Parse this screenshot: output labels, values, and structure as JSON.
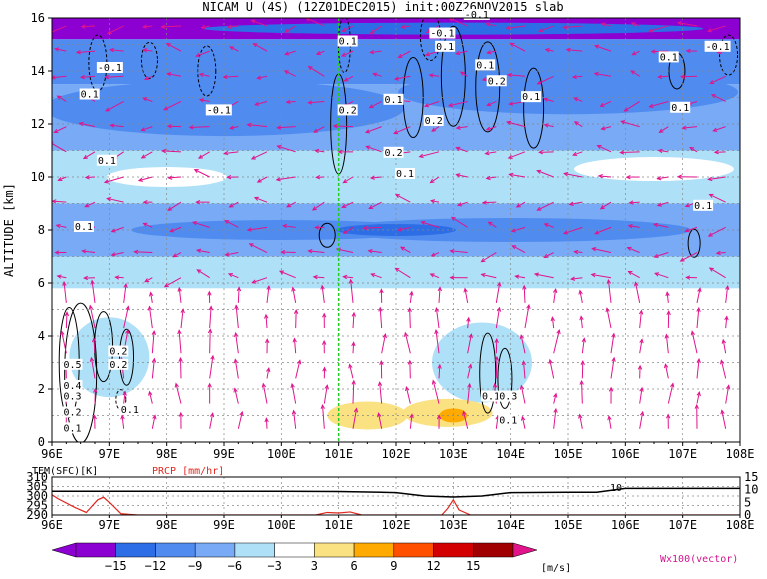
{
  "chart_data": [
    {
      "type": "heatmap",
      "title": "NICAM U (4S) (12Z01DEC2015) init:00Z26NOV2015 slab",
      "ylabel": "ALTITUDE [km]",
      "xlabel": "",
      "x_ticks": [
        "96E",
        "97E",
        "98E",
        "99E",
        "100E",
        "101E",
        "102E",
        "103E",
        "104E",
        "105E",
        "106E",
        "107E",
        "108E"
      ],
      "y_ticks": [
        "0",
        "2",
        "4",
        "6",
        "8",
        "10",
        "12",
        "14",
        "16"
      ],
      "xlim": [
        96,
        108
      ],
      "ylim": [
        0,
        16
      ],
      "grid": true,
      "reference_line_x": 101,
      "colorbar": {
        "levels": [
          "-15",
          "-12",
          "-9",
          "-6",
          "-3",
          "3",
          "6",
          "9",
          "12",
          "15"
        ],
        "unit": "[m/s]",
        "colors": [
          "#8c00d2",
          "#2d6ee6",
          "#508cf0",
          "#78aaf5",
          "#aee0f8",
          "#ffffff",
          "#fae182",
          "#ffaa00",
          "#ff5000",
          "#d20000",
          "#a00000",
          "#e1148c"
        ]
      },
      "contour_labels": [
        {
          "text": "0.1",
          "x": 96.5,
          "y": 13.0
        },
        {
          "text": "-0.1",
          "x": 96.8,
          "y": 14.0
        },
        {
          "text": "0.1",
          "x": 96.8,
          "y": 10.5
        },
        {
          "text": "-0.1",
          "x": 98.7,
          "y": 12.4
        },
        {
          "text": "0.1",
          "x": 96.4,
          "y": 8.0
        },
        {
          "text": "0.1",
          "x": 101.0,
          "y": 15.0
        },
        {
          "text": "0.2",
          "x": 101.0,
          "y": 12.4
        },
        {
          "text": "0.1",
          "x": 101.8,
          "y": 12.8
        },
        {
          "text": "0.2",
          "x": 101.8,
          "y": 10.8
        },
        {
          "text": "0.1",
          "x": 102.0,
          "y": 10.0
        },
        {
          "text": "0.2",
          "x": 102.5,
          "y": 12.0
        },
        {
          "text": "-0.1",
          "x": 102.6,
          "y": 15.3
        },
        {
          "text": "0.1",
          "x": 102.7,
          "y": 14.8
        },
        {
          "text": "-0.1",
          "x": 103.2,
          "y": 16.0
        },
        {
          "text": "0.1",
          "x": 103.4,
          "y": 14.1
        },
        {
          "text": "0.2",
          "x": 103.6,
          "y": 13.5
        },
        {
          "text": "0.1",
          "x": 104.2,
          "y": 12.9
        },
        {
          "text": "0.1",
          "x": 106.6,
          "y": 14.4
        },
        {
          "text": "-0.1",
          "x": 107.4,
          "y": 14.8
        },
        {
          "text": "0.1",
          "x": 106.8,
          "y": 12.5
        },
        {
          "text": "0.1",
          "x": 107.2,
          "y": 8.8
        },
        {
          "text": "0.2",
          "x": 97.0,
          "y": 3.3
        },
        {
          "text": "0.2",
          "x": 97.0,
          "y": 2.8
        },
        {
          "text": "0.5",
          "x": 96.2,
          "y": 2.8
        },
        {
          "text": "0.4",
          "x": 96.2,
          "y": 2.0
        },
        {
          "text": "0.3",
          "x": 96.2,
          "y": 1.6
        },
        {
          "text": "0.2",
          "x": 96.2,
          "y": 1.0
        },
        {
          "text": "0.1",
          "x": 96.2,
          "y": 0.4
        },
        {
          "text": "0.1",
          "x": 97.2,
          "y": 1.1
        },
        {
          "text": "0.1",
          "x": 103.5,
          "y": 1.6
        },
        {
          "text": "0.3",
          "x": 103.8,
          "y": 1.6
        },
        {
          "text": "0.1",
          "x": 103.8,
          "y": 0.7
        }
      ]
    },
    {
      "type": "line",
      "left_label": "TEM(SFC)[K]",
      "right_label": "PRCP [mm/hr]",
      "xlim": [
        96,
        108
      ],
      "x_ticks": [
        "96E",
        "97E",
        "98E",
        "99E",
        "100E",
        "101E",
        "102E",
        "103E",
        "104E",
        "105E",
        "106E",
        "107E",
        "108E"
      ],
      "left_ticks": [
        "290",
        "295",
        "300",
        "305",
        "310"
      ],
      "right_ticks": [
        "0",
        "5",
        "10",
        "15"
      ],
      "left_ylim": [
        290,
        310
      ],
      "right_ylim": [
        0,
        15
      ],
      "annotation": "10",
      "series": [
        {
          "name": "TEM(SFC)[K]",
          "color": "#000000",
          "x": [
            96,
            97,
            98,
            99,
            100,
            101,
            102,
            102.5,
            103,
            103.5,
            104,
            105,
            105.5,
            106,
            107,
            108
          ],
          "values": [
            302.5,
            302.5,
            302.5,
            302.5,
            302.5,
            302.4,
            301.8,
            300.0,
            299.5,
            300.0,
            301.8,
            302.0,
            302.0,
            304.0,
            304.0,
            304.0
          ]
        },
        {
          "name": "PRCP [mm/hr]",
          "color": "#e0281e",
          "x": [
            96,
            96.1,
            96.4,
            96.6,
            96.8,
            96.9,
            97,
            97.2,
            97.5,
            100.6,
            100.8,
            101.0,
            101.2,
            101.4,
            102.8,
            102.9,
            103.0,
            103.1,
            103.3,
            104,
            106,
            108
          ],
          "values": [
            8.0,
            6.5,
            3.0,
            1.0,
            6.0,
            7.0,
            5.0,
            0.5,
            0,
            0,
            1.0,
            0.8,
            1.2,
            0,
            0,
            2.5,
            6.0,
            2.0,
            0,
            0,
            0,
            0
          ]
        }
      ]
    }
  ],
  "legend": {
    "vector_label": "Wx100(vector)",
    "unit": "[m/s]"
  }
}
